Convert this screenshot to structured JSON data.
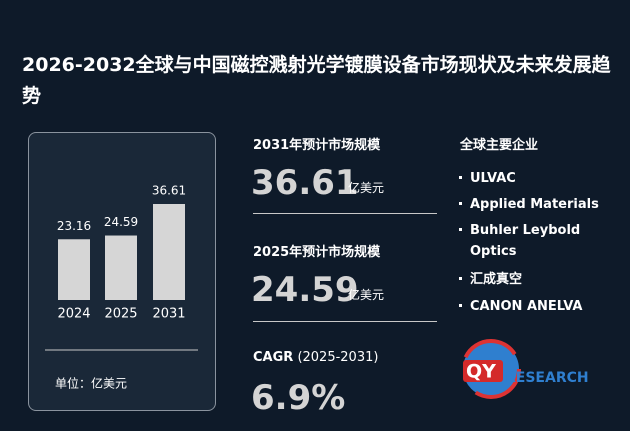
{
  "chart_data": {
    "type": "bar",
    "title": "2026-2032全球与中国磁控溅射光学镀膜设备市场现状及未来发展趋势",
    "categories": [
      "2024",
      "2025",
      "2031"
    ],
    "values": [
      23.16,
      24.59,
      36.61
    ],
    "color": "#d6d6d6",
    "unit_label": "单位：亿美元"
  },
  "stats": [
    {
      "label": "2031年预计市场规模",
      "value": "36.61",
      "unit": "亿美元"
    },
    {
      "label": "2025年预计市场规模",
      "value": "24.59",
      "unit": "亿美元"
    }
  ],
  "cagr": {
    "label": "CAGR",
    "period": "(2025-2031)",
    "value": "6.9%"
  },
  "companies": {
    "title": "全球主要企业",
    "items": [
      "ULVAC",
      "Applied Materials",
      "Buhler Leybold Optics",
      "汇成真空",
      "CANON ANELVA"
    ]
  },
  "logo": {
    "mark": "QY",
    "text": "RESEARCH"
  }
}
